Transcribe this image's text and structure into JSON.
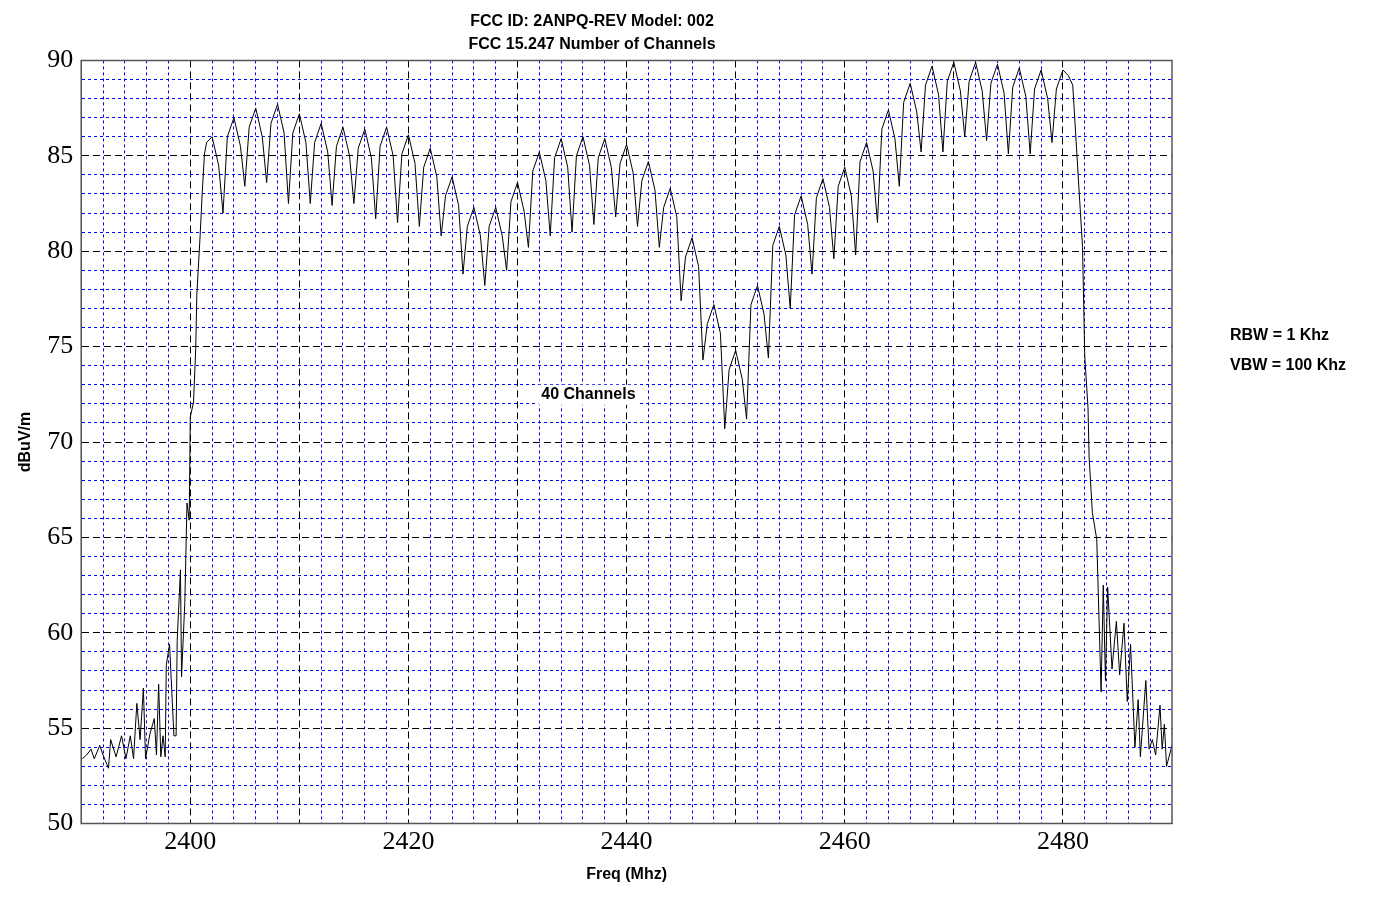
{
  "chart_data": {
    "type": "line",
    "title": "FCC ID: 2ANPQ-REV Model: 002",
    "subtitle": "FCC 15.247 Number of Channels",
    "xlabel": "Freq (Mhz)",
    "ylabel": "dBuV/m",
    "annotations": [
      "40 Channels",
      "RBW = 1 Khz",
      "VBW = 100 Khz"
    ],
    "xlim": [
      2390,
      2490
    ],
    "ylim": [
      50,
      90
    ],
    "xticks": [
      {
        "value": 2392,
        "label": null
      },
      {
        "value": 2394,
        "label": null
      },
      {
        "value": 2396,
        "label": null
      },
      {
        "value": 2398,
        "label": null
      },
      2400,
      {
        "value": 2402,
        "label": null
      },
      {
        "value": 2404,
        "label": null
      },
      {
        "value": 2406,
        "label": null
      },
      {
        "value": 2408,
        "label": null
      },
      {
        "value": 2410,
        "label": null
      },
      {
        "value": 2412,
        "label": null
      },
      {
        "value": 2414,
        "label": null
      },
      {
        "value": 2416,
        "label": null
      },
      {
        "value": 2418,
        "label": null
      },
      2420,
      {
        "value": 2422,
        "label": null
      },
      {
        "value": 2424,
        "label": null
      },
      {
        "value": 2426,
        "label": null
      },
      {
        "value": 2428,
        "label": null
      },
      {
        "value": 2430,
        "label": null
      },
      {
        "value": 2432,
        "label": null
      },
      {
        "value": 2434,
        "label": null
      },
      {
        "value": 2436,
        "label": null
      },
      {
        "value": 2438,
        "label": null
      },
      2440,
      {
        "value": 2442,
        "label": null
      },
      {
        "value": 2444,
        "label": null
      },
      {
        "value": 2446,
        "label": null
      },
      {
        "value": 2448,
        "label": null
      },
      {
        "value": 2450,
        "label": null
      },
      {
        "value": 2452,
        "label": null
      },
      {
        "value": 2454,
        "label": null
      },
      {
        "value": 2456,
        "label": null
      },
      {
        "value": 2458,
        "label": null
      },
      2460,
      {
        "value": 2462,
        "label": null
      },
      {
        "value": 2464,
        "label": null
      },
      {
        "value": 2466,
        "label": null
      },
      {
        "value": 2468,
        "label": null
      },
      {
        "value": 2470,
        "label": null
      },
      {
        "value": 2472,
        "label": null
      },
      {
        "value": 2474,
        "label": null
      },
      {
        "value": 2476,
        "label": null
      },
      {
        "value": 2478,
        "label": null
      },
      2480,
      {
        "value": 2482,
        "label": null
      },
      {
        "value": 2484,
        "label": null
      },
      {
        "value": 2486,
        "label": null
      },
      {
        "value": 2488,
        "label": null
      }
    ],
    "yticks": [
      50,
      {
        "value": 51,
        "label": null
      },
      {
        "value": 52,
        "label": null
      },
      {
        "value": 53,
        "label": null
      },
      {
        "value": 54,
        "label": null
      },
      55,
      {
        "value": 56,
        "label": null
      },
      {
        "value": 57,
        "label": null
      },
      {
        "value": 58,
        "label": null
      },
      {
        "value": 59,
        "label": null
      },
      60,
      {
        "value": 61,
        "label": null
      },
      {
        "value": 62,
        "label": null
      },
      {
        "value": 63,
        "label": null
      },
      {
        "value": 64,
        "label": null
      },
      65,
      {
        "value": 66,
        "label": null
      },
      {
        "value": 67,
        "label": null
      },
      {
        "value": 68,
        "label": null
      },
      {
        "value": 69,
        "label": null
      },
      70,
      {
        "value": 71,
        "label": null
      },
      {
        "value": 72,
        "label": null
      },
      {
        "value": 73,
        "label": null
      },
      {
        "value": 74,
        "label": null
      },
      75,
      {
        "value": 76,
        "label": null
      },
      {
        "value": 77,
        "label": null
      },
      {
        "value": 78,
        "label": null
      },
      {
        "value": 79,
        "label": null
      },
      80,
      {
        "value": 81,
        "label": null
      },
      {
        "value": 82,
        "label": null
      },
      {
        "value": 83,
        "label": null
      },
      {
        "value": 84,
        "label": null
      },
      85,
      {
        "value": 86,
        "label": null
      },
      {
        "value": 87,
        "label": null
      },
      {
        "value": 88,
        "label": null
      },
      {
        "value": 89,
        "label": null
      },
      90
    ],
    "grid": true,
    "legend": false,
    "marker": "none",
    "color": "#000000",
    "x": [
      2390.1,
      2390.5,
      2390.9,
      2391.2,
      2391.7,
      2392.0,
      2392.5,
      2392.7,
      2393.2,
      2393.7,
      2394.1,
      2394.5,
      2394.8,
      2395.1,
      2395.4,
      2395.7,
      2395.9,
      2396.3,
      2396.7,
      2396.9,
      2397.1,
      2397.3,
      2397.5,
      2397.7,
      2397.8,
      2398.1,
      2398.5,
      2398.7,
      2398.8,
      2399.1,
      2399.2,
      2399.5,
      2399.7,
      2399.9,
      2400.0,
      2400.3,
      2400.5,
      2400.6,
      2400.9,
      2401.1,
      2401.3,
      2401.5,
      2402,
      2402.6,
      2403,
      2403.4,
      2404,
      2404.6,
      2405,
      2405.4,
      2406,
      2406.6,
      2407,
      2407.4,
      2408,
      2408.6,
      2409,
      2409.4,
      2410,
      2410.6,
      2411,
      2411.4,
      2412,
      2412.6,
      2413,
      2413.4,
      2414,
      2414.6,
      2415,
      2415.4,
      2416,
      2416.6,
      2417,
      2417.4,
      2418,
      2418.6,
      2419,
      2419.4,
      2420,
      2420.6,
      2421,
      2421.4,
      2422,
      2422.6,
      2423,
      2423.4,
      2424,
      2424.6,
      2425,
      2425.4,
      2426,
      2426.6,
      2427,
      2427.4,
      2428,
      2428.6,
      2429,
      2429.4,
      2430,
      2430.6,
      2431,
      2431.4,
      2432,
      2432.6,
      2433,
      2433.4,
      2434,
      2434.6,
      2435,
      2435.4,
      2436,
      2436.6,
      2437,
      2437.4,
      2438,
      2438.6,
      2439,
      2439.4,
      2440,
      2440.6,
      2441,
      2441.4,
      2442,
      2442.6,
      2443,
      2443.4,
      2444,
      2444.6,
      2445,
      2445.4,
      2446,
      2446.6,
      2447,
      2447.4,
      2448,
      2448.6,
      2449,
      2449.4,
      2450,
      2450.6,
      2451,
      2451.4,
      2452,
      2452.6,
      2453,
      2453.4,
      2454,
      2454.6,
      2455,
      2455.4,
      2456,
      2456.6,
      2457,
      2457.4,
      2458,
      2458.6,
      2459,
      2459.4,
      2460,
      2460.6,
      2461,
      2461.4,
      2462,
      2462.6,
      2463,
      2463.4,
      2464,
      2464.6,
      2465,
      2465.4,
      2466,
      2466.6,
      2467,
      2467.4,
      2468,
      2468.6,
      2469,
      2469.4,
      2470,
      2470.6,
      2471,
      2471.4,
      2472,
      2472.6,
      2473,
      2473.4,
      2474,
      2474.6,
      2475,
      2475.4,
      2476,
      2476.6,
      2477,
      2477.4,
      2478,
      2478.6,
      2479,
      2479.4,
      2480,
      2480.5,
      2480.9,
      2481.5,
      2481.8,
      2482.0,
      2482.3,
      2482.4,
      2482.7,
      2483.1,
      2483.5,
      2483.7,
      2483.9,
      2484.1,
      2484.5,
      2484.9,
      2485.2,
      2485.6,
      2485.9,
      2486.2,
      2486.6,
      2486.9,
      2487.1,
      2487.6,
      2487.9,
      2488.2,
      2488.5,
      2488.9,
      2489.1,
      2489.3,
      2489.5,
      2490.0
    ],
    "values": [
      53.4,
      53.6,
      53.9,
      53.4,
      54.1,
      53.6,
      52.9,
      54.4,
      53.5,
      54.6,
      53.4,
      54.6,
      53.4,
      56.3,
      54.4,
      57.1,
      53.4,
      54.7,
      55.5,
      53.6,
      57.3,
      53.5,
      54.6,
      53.5,
      58.3,
      59.4,
      54.6,
      54.6,
      59.6,
      63.3,
      57.7,
      61.6,
      66.8,
      65.9,
      71.3,
      72.1,
      74.9,
      77.7,
      80.8,
      83.1,
      85.1,
      85.7,
      86.0,
      84.5,
      82.0,
      86.0,
      87.0,
      85.5,
      83.4,
      86.5,
      87.5,
      86.0,
      83.6,
      86.7,
      87.7,
      86.2,
      82.5,
      86.2,
      87.2,
      85.7,
      82.5,
      85.7,
      86.7,
      85.2,
      82.4,
      85.5,
      86.5,
      85.0,
      82.5,
      85.4,
      86.4,
      84.9,
      81.7,
      85.5,
      86.5,
      85.0,
      81.5,
      85.1,
      86.1,
      84.6,
      81.3,
      84.4,
      85.4,
      83.9,
      80.8,
      82.9,
      83.9,
      82.4,
      78.8,
      81.3,
      82.3,
      80.8,
      78.2,
      81.3,
      82.3,
      80.8,
      79.0,
      82.6,
      83.6,
      82.1,
      80.2,
      84.2,
      85.2,
      83.7,
      80.8,
      84.9,
      85.9,
      84.4,
      81.0,
      85.0,
      86.0,
      84.5,
      81.4,
      84.9,
      85.9,
      84.4,
      81.8,
      84.6,
      85.6,
      84.1,
      81.3,
      83.7,
      84.7,
      83.2,
      80.2,
      82.3,
      83.3,
      81.8,
      77.4,
      79.7,
      80.7,
      79.2,
      74.3,
      76.2,
      77.2,
      75.7,
      70.7,
      73.8,
      74.8,
      73.3,
      71.2,
      77.2,
      78.2,
      76.7,
      74.4,
      80.3,
      81.3,
      79.8,
      77.0,
      81.9,
      82.9,
      81.4,
      78.8,
      82.8,
      83.8,
      82.3,
      79.6,
      83.4,
      84.4,
      82.9,
      79.8,
      84.7,
      85.7,
      84.2,
      81.5,
      86.4,
      87.4,
      85.9,
      83.4,
      87.8,
      88.8,
      87.3,
      85.2,
      88.7,
      89.7,
      88.2,
      85.2,
      88.9,
      89.9,
      88.4,
      86.0,
      88.9,
      89.9,
      88.4,
      85.8,
      88.8,
      89.8,
      88.3,
      85.1,
      88.6,
      89.6,
      88.1,
      85.1,
      88.5,
      89.5,
      88.0,
      85.7,
      88.5,
      89.5,
      89.2,
      88.7,
      83.0,
      80.2,
      74.5,
      71.8,
      69.2,
      66.3,
      64.9,
      56.9,
      62.5,
      57.5,
      62.4,
      58.1,
      60.6,
      57.8,
      60.5,
      56.4,
      59.4,
      54.0,
      56.5,
      53.5,
      57.5,
      53.9,
      54.4,
      53.6,
      56.2,
      53.9,
      55.2,
      53.0,
      54.1
    ]
  }
}
